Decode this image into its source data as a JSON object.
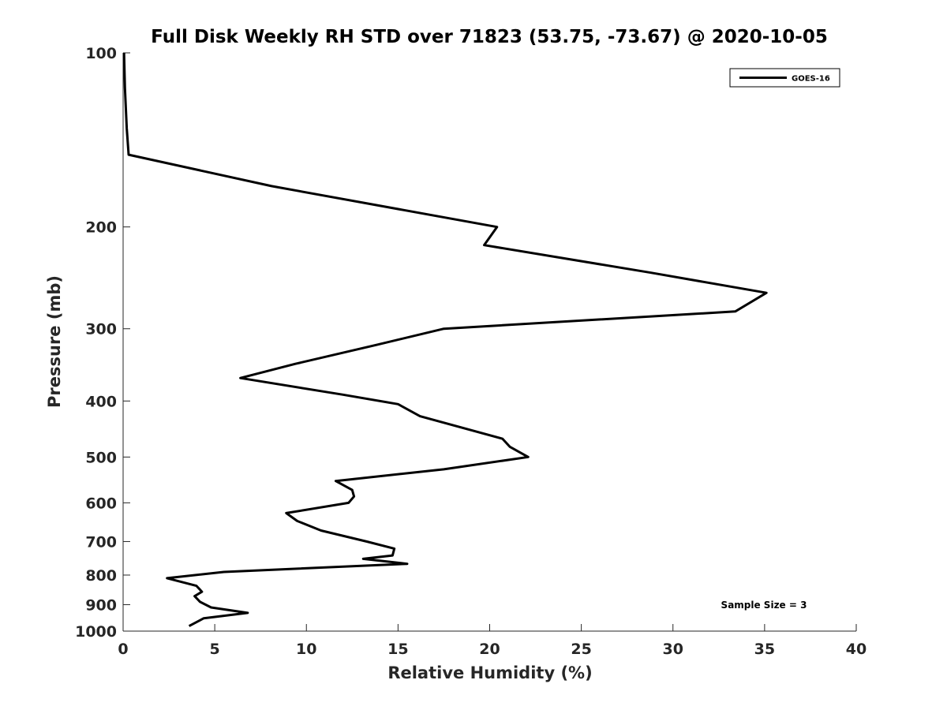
{
  "chart_data": {
    "type": "line",
    "title": "Full Disk Weekly RH STD over 71823 (53.75, -73.67) @ 2020-10-05",
    "xlabel": "Relative Humidity (%)",
    "ylabel": "Pressure (mb)",
    "xlim": [
      0,
      40
    ],
    "ylim": [
      100,
      1000
    ],
    "yscale": "log",
    "y_inverted": true,
    "xticks": [
      0,
      5,
      10,
      15,
      20,
      25,
      30,
      35,
      40
    ],
    "xtick_labels": [
      "0",
      "5",
      "10",
      "15",
      "20",
      "25",
      "30",
      "35",
      "40"
    ],
    "yticks": [
      100,
      200,
      300,
      400,
      500,
      600,
      700,
      800,
      900,
      1000
    ],
    "ytick_labels": [
      "100",
      "200",
      "300",
      "400",
      "500",
      "600",
      "700",
      "800",
      "900",
      "1000"
    ],
    "grid": false,
    "legend": {
      "placement": "top-right",
      "entries": [
        "GOES-16"
      ]
    },
    "annotation": "Sample Size = 3",
    "series": [
      {
        "name": "GOES-16",
        "color": "#000000",
        "x": [
          0.05,
          0.1,
          0.2,
          0.3,
          8.1,
          20.4,
          19.7,
          28.8,
          35.1,
          33.4,
          17.5,
          13.8,
          9.4,
          6.4,
          12.0,
          15.0,
          16.2,
          20.7,
          21.1,
          22.1,
          17.5,
          11.6,
          12.5,
          12.6,
          12.3,
          8.9,
          9.5,
          10.8,
          13.3,
          14.8,
          14.7,
          13.1,
          15.5,
          5.5,
          2.4,
          4.0,
          4.3,
          3.9,
          4.2,
          4.8,
          6.8,
          4.4,
          3.6
        ],
        "y": [
          100,
          115,
          135,
          150,
          170,
          200,
          215,
          240,
          260,
          280,
          300,
          320,
          345,
          365,
          390,
          405,
          425,
          465,
          480,
          500,
          525,
          550,
          570,
          585,
          600,
          625,
          645,
          670,
          700,
          720,
          740,
          750,
          765,
          790,
          810,
          835,
          855,
          870,
          890,
          910,
          930,
          950,
          980
        ]
      }
    ]
  }
}
